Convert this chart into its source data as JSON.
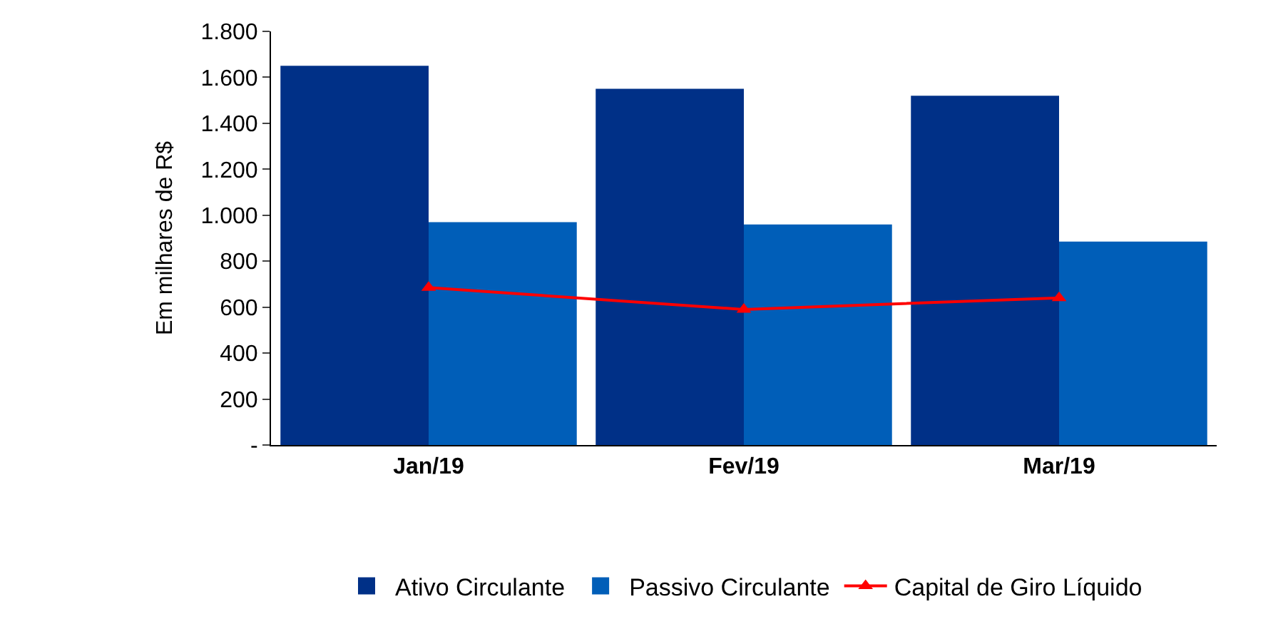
{
  "chart_data": {
    "type": "bar",
    "ylabel": "Em milhares de R$",
    "categories": [
      "Jan/19",
      "Fev/19",
      "Mar/19"
    ],
    "series": [
      {
        "name": "Ativo Circulante",
        "color": "#003087",
        "values": [
          1650,
          1550,
          1520
        ]
      },
      {
        "name": "Passivo Circulante",
        "color": "#005eb8",
        "values": [
          970,
          960,
          885
        ]
      },
      {
        "name": "Capital de Giro Líquido",
        "type": "line",
        "color": "#ff0000",
        "marker": "triangle",
        "values": [
          685,
          590,
          640
        ]
      }
    ],
    "ylim": [
      0,
      1800
    ],
    "yticks": [
      {
        "value": 0,
        "label": "-"
      },
      {
        "value": 200,
        "label": "200"
      },
      {
        "value": 400,
        "label": "400"
      },
      {
        "value": 600,
        "label": "600"
      },
      {
        "value": 800,
        "label": "800"
      },
      {
        "value": 1000,
        "label": "1.000"
      },
      {
        "value": 1200,
        "label": "1.200"
      },
      {
        "value": 1400,
        "label": "1.400"
      },
      {
        "value": 1600,
        "label": "1.600"
      },
      {
        "value": 1800,
        "label": "1.800"
      }
    ],
    "legend": "bottom"
  }
}
